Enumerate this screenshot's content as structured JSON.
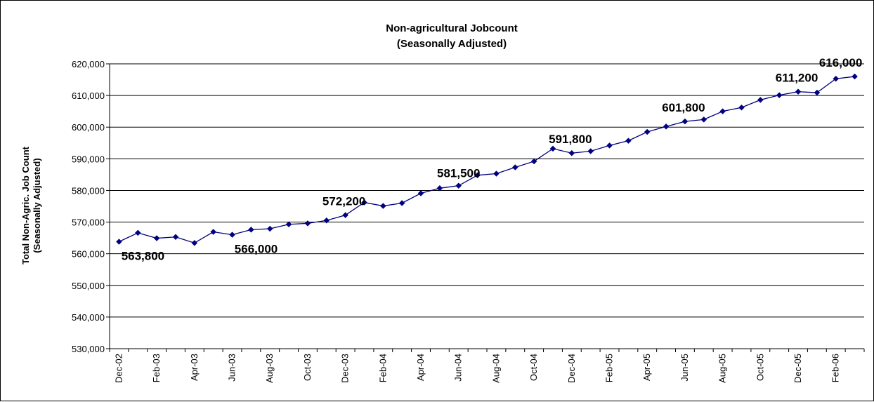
{
  "chart_data": {
    "type": "line",
    "title": "Non-agricultural Jobcount",
    "subtitle": "(Seasonally Adjusted)",
    "ylabel": "Total Non-Agric. Job Count",
    "ylabel2": "(Seasonally Adjusted)",
    "xlabel": "",
    "ylim": [
      530000,
      620000
    ],
    "ytick_step": 10000,
    "ytick_labels": [
      "530,000",
      "540,000",
      "550,000",
      "560,000",
      "570,000",
      "580,000",
      "590,000",
      "600,000",
      "610,000",
      "620,000"
    ],
    "grid": true,
    "legend": "none",
    "x": [
      "Dec-02",
      "Jan-03",
      "Feb-03",
      "Mar-03",
      "Apr-03",
      "May-03",
      "Jun-03",
      "Jul-03",
      "Aug-03",
      "Sep-03",
      "Oct-03",
      "Nov-03",
      "Dec-03",
      "Jan-04",
      "Feb-04",
      "Mar-04",
      "Apr-04",
      "May-04",
      "Jun-04",
      "Jul-04",
      "Aug-04",
      "Sep-04",
      "Oct-04",
      "Nov-04",
      "Dec-04",
      "Jan-05",
      "Feb-05",
      "Mar-05",
      "Apr-05",
      "May-05",
      "Jun-05",
      "Jul-05",
      "Aug-05",
      "Sep-05",
      "Oct-05",
      "Nov-05",
      "Dec-05",
      "Jan-06",
      "Feb-06",
      "Mar-06"
    ],
    "xtick_labels": [
      "Dec-02",
      "",
      "Feb-03",
      "",
      "Apr-03",
      "",
      "Jun-03",
      "",
      "Aug-03",
      "",
      "Oct-03",
      "",
      "Dec-03",
      "",
      "Feb-04",
      "",
      "Apr-04",
      "",
      "Jun-04",
      "",
      "Aug-04",
      "",
      "Oct-04",
      "",
      "Dec-04",
      "",
      "Feb-05",
      "",
      "Apr-05",
      "",
      "Jun-05",
      "",
      "Aug-05",
      "",
      "Oct-05",
      "",
      "Dec-05",
      "",
      "Feb-06",
      ""
    ],
    "series": [
      {
        "values": [
          563800,
          566600,
          564900,
          565300,
          563400,
          566900,
          566000,
          567600,
          567900,
          569300,
          569600,
          570500,
          572200,
          576200,
          575100,
          576000,
          579100,
          580700,
          581500,
          584800,
          585300,
          587300,
          589200,
          593200,
          591800,
          592400,
          594200,
          595700,
          598500,
          600200,
          601800,
          602400,
          605000,
          606200,
          608600,
          610100,
          611200,
          610900,
          615300,
          616000
        ],
        "color": "#000080",
        "labels": [
          {
            "index": 0,
            "text": "563,800",
            "pos": "below"
          },
          {
            "index": 6,
            "text": "566,000",
            "pos": "below"
          },
          {
            "index": 12,
            "text": "572,200",
            "pos": "above-left"
          },
          {
            "index": 18,
            "text": "581,500",
            "pos": "above"
          },
          {
            "index": 24,
            "text": "591,800",
            "pos": "above-left"
          },
          {
            "index": 30,
            "text": "601,800",
            "pos": "above-left"
          },
          {
            "index": 36,
            "text": "611,200",
            "pos": "above-left"
          },
          {
            "index": 39,
            "text": "616,000",
            "pos": "above-left"
          }
        ]
      }
    ]
  }
}
